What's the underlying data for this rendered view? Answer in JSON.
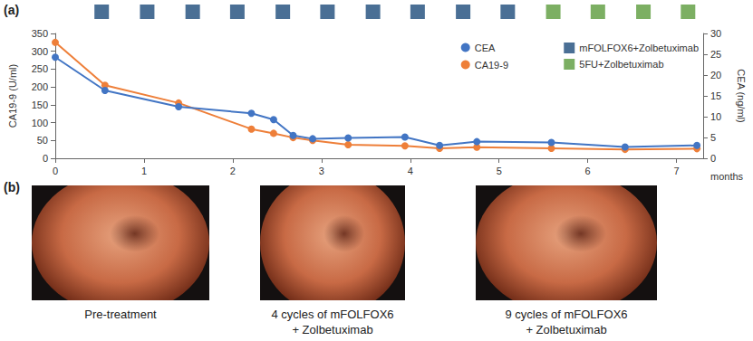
{
  "chart_data": {
    "type": "line",
    "x_label": "months",
    "y_label": "CA19-9 (U/ml)",
    "y2_label": "CEA (ng/ml)",
    "x": [
      0,
      0.56,
      1.39,
      2.21,
      2.46,
      2.68,
      2.9,
      3.3,
      3.94,
      4.33,
      4.75,
      5.59,
      6.42,
      7.23
    ],
    "xlim": [
      0,
      7.3
    ],
    "xticks": [
      0,
      1,
      2,
      3,
      4,
      5,
      6,
      7
    ],
    "ylim": [
      0,
      350
    ],
    "yticks": [
      0,
      50,
      100,
      150,
      200,
      250,
      300,
      350
    ],
    "y2lim": [
      0,
      30
    ],
    "y2ticks": [
      0,
      5,
      10,
      15,
      20,
      25,
      30
    ],
    "grid": false,
    "legend": "top-right",
    "series": [
      {
        "name": "CEA",
        "color": "#4275c4",
        "axis": "y2",
        "marker": "circle",
        "line_style": "solid",
        "values": [
          24.3,
          16.3,
          12.4,
          10.8,
          9.3,
          5.5,
          4.7,
          4.9,
          5.1,
          3.1,
          4.0,
          3.8,
          2.7,
          3.1
        ]
      },
      {
        "name": "CA19-9",
        "color": "#ee7f39",
        "axis": "y",
        "marker": "circle",
        "line_style": "solid",
        "values": [
          325,
          205,
          155,
          82,
          70,
          58,
          50,
          38,
          35,
          28,
          31,
          28,
          25,
          27
        ]
      }
    ],
    "cycles": [
      {
        "name": "mFOLFOX6+Zolbetuximab",
        "color": "#1d4b7a",
        "marker": "square",
        "x": [
          0.53,
          1.04,
          1.55,
          2.05,
          2.56,
          3.06,
          3.57,
          4.07,
          4.58,
          5.08
        ]
      },
      {
        "name": "5FU+Zolbetuximab",
        "color": "#5b9b3c",
        "marker": "square",
        "x": [
          5.59,
          6.09,
          6.6,
          7.1
        ]
      }
    ]
  },
  "panel_labels": [
    "(a)",
    "(b)"
  ],
  "images": [
    {
      "caption": [
        "Pre-treatment"
      ]
    },
    {
      "caption": [
        "4 cycles of mFOLFOX6",
        "+ Zolbetuximab"
      ]
    },
    {
      "caption": [
        "9 cycles of mFOLFOX6",
        "+ Zolbetuximab"
      ]
    }
  ]
}
